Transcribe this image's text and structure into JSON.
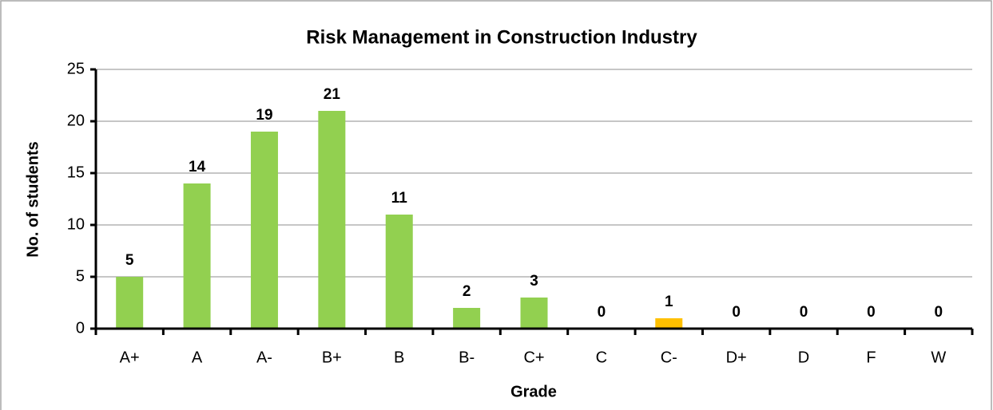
{
  "chart_data": {
    "type": "bar",
    "title": "Risk Management in Construction Industry",
    "xlabel": "Grade",
    "ylabel": "No. of students",
    "categories": [
      "A+",
      "A",
      "A-",
      "B+",
      "B",
      "B-",
      "C+",
      "C",
      "C-",
      "D+",
      "D",
      "F",
      "W"
    ],
    "values": [
      5,
      14,
      19,
      21,
      11,
      2,
      3,
      0,
      1,
      0,
      0,
      0,
      0
    ],
    "colors": [
      "#92d050",
      "#92d050",
      "#92d050",
      "#92d050",
      "#92d050",
      "#92d050",
      "#92d050",
      "#92d050",
      "#ffc000",
      "#92d050",
      "#92d050",
      "#92d050",
      "#92d050"
    ],
    "ylim": [
      0,
      25
    ],
    "yticks": [
      0,
      5,
      10,
      15,
      20,
      25
    ],
    "grid": true
  }
}
